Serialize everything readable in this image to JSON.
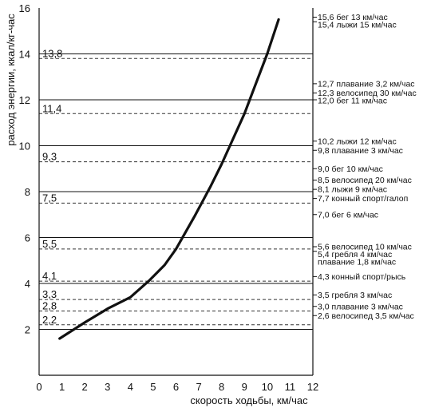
{
  "chart_data": {
    "type": "line",
    "xlabel": "скорость ходьбы, км/час",
    "ylabel": "расход энергии, ккал/кг-час",
    "xlim": [
      0,
      12
    ],
    "ylim": [
      0,
      16
    ],
    "xticks": [
      0,
      1,
      2,
      3,
      4,
      5,
      6,
      7,
      8,
      9,
      10,
      11,
      12
    ],
    "yticks": [
      2,
      4,
      6,
      8,
      10,
      12,
      14,
      16
    ],
    "grid": "horizontal solid lines at even energy values",
    "series": [
      {
        "x": [
          0.9,
          2.0,
          3.0,
          4.0,
          4.8,
          5.5,
          6.0,
          6.8,
          7.5,
          8.0,
          8.5,
          9.0,
          9.5,
          10.0,
          10.5
        ],
        "values": [
          1.6,
          2.3,
          2.9,
          3.4,
          4.1,
          4.8,
          5.5,
          6.9,
          8.2,
          9.2,
          10.3,
          11.4,
          12.7,
          14.0,
          15.5
        ]
      }
    ],
    "left_dashed_markers": [
      {
        "value": 13.8,
        "label": "13,8"
      },
      {
        "value": 11.4,
        "label": "11,4"
      },
      {
        "value": 9.3,
        "label": "9,3"
      },
      {
        "value": 7.5,
        "label": "7,5"
      },
      {
        "value": 5.5,
        "label": "5,5"
      },
      {
        "value": 4.1,
        "label": "4,1"
      },
      {
        "value": 3.3,
        "label": "3,3"
      },
      {
        "value": 2.8,
        "label": "2,8"
      },
      {
        "value": 2.2,
        "label": "2,2"
      }
    ],
    "right_activities": [
      {
        "value": 15.6,
        "label": "15,6 бег 13 км/час"
      },
      {
        "value": 15.4,
        "label": "15,4  лыжи 15 км/час"
      },
      {
        "value": 12.7,
        "label": "12,7 плавание 3,2 км/час"
      },
      {
        "value": 12.3,
        "label": "12,3 велосипед 30 км/час"
      },
      {
        "value": 12.0,
        "label": "12,0 бег 11 км/час"
      },
      {
        "value": 10.2,
        "label": "10,2 лыжи 12 км/час"
      },
      {
        "value": 9.8,
        "label": "9,8 плавание 3 км/час"
      },
      {
        "value": 9.0,
        "label": "9,0  бег 10 км/час"
      },
      {
        "value": 8.5,
        "label": "8,5 велосипед 20 км/час"
      },
      {
        "value": 8.1,
        "label": "8,1 лыжи 9 км/час"
      },
      {
        "value": 7.7,
        "label": "7,7 конный спорт/галоп"
      },
      {
        "value": 7.0,
        "label": "7,0 бег 6 км/час"
      },
      {
        "value": 5.6,
        "label": "5,6 велосипед 10 км/час"
      },
      {
        "value": 5.4,
        "label": "5,4 гребля 4 км/час"
      },
      {
        "value": 5.2,
        "label": "плавание 1,8 км/час",
        "tick": false
      },
      {
        "value": 4.3,
        "label": "4,3 конный спорт/рысь"
      },
      {
        "value": 3.5,
        "label": "3,5 гребля 3 км/час"
      },
      {
        "value": 3.0,
        "label": "3,0 плавание 3 км/час"
      },
      {
        "value": 2.6,
        "label": "2,6 велосипед 3,5 км/час"
      }
    ]
  }
}
